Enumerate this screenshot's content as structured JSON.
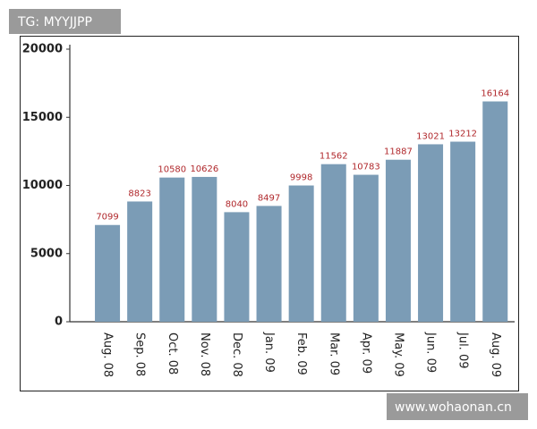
{
  "chart_data": {
    "type": "bar",
    "categories": [
      "Aug. 08",
      "Sep. 08",
      "Oct. 08",
      "Nov. 08",
      "Dec. 08",
      "Jan. 09",
      "Feb. 09",
      "Mar. 09",
      "Apr. 09",
      "May. 09",
      "Jun. 09",
      "Jul. 09",
      "Aug. 09"
    ],
    "values": [
      7099,
      8823,
      10580,
      10626,
      8040,
      8497,
      9998,
      11562,
      10783,
      11887,
      13021,
      13212,
      16164
    ],
    "color": "#7b9cb6",
    "value_label_color": "#b0282c",
    "ylim": [
      0,
      20000
    ],
    "yticks": [
      0,
      5000,
      10000,
      15000,
      20000
    ],
    "grid": false
  },
  "watermarks": {
    "top": "TG: MYYJJPP",
    "bottom": "www.wohaonan.cn"
  }
}
